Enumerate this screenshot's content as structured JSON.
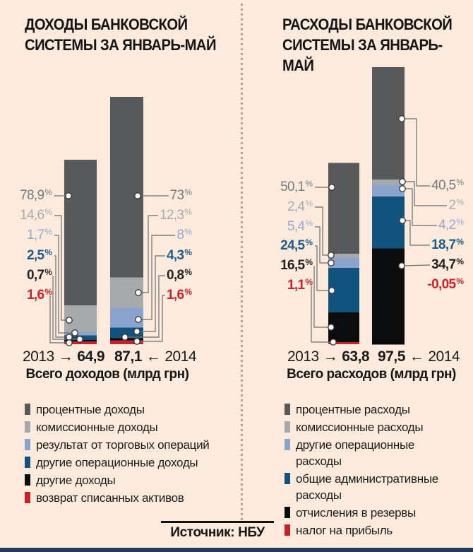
{
  "page": {
    "background_color": "#fcebdc",
    "divider_color": "#b3a79b",
    "bottom_bar_color": "#24395b",
    "leader_line_color": "#6d6e71"
  },
  "source": {
    "label": "Источник: НБУ"
  },
  "chart_data": [
    {
      "type": "bar",
      "stacked": true,
      "title": "ДОХОДЫ БАНКОВСКОЙ\nСИСТЕМЫ ЗА ЯНВАРЬ-МАЙ",
      "categories": [
        "2013",
        "2014"
      ],
      "totals": [
        64.9,
        87.1
      ],
      "arrows": [
        "→",
        "←"
      ],
      "totals_unit_label": "Всего доходов (млрд грн)",
      "value_format": "percent_of_total",
      "legend_position": "bottom-left",
      "series": [
        {
          "name": "процентные доходы",
          "color": "#58595b",
          "label_color": "#797a7d",
          "values": [
            78.9,
            73
          ]
        },
        {
          "name": "комиссионные доходы",
          "color": "#a7a9ac",
          "label_color": "#a9abae",
          "values": [
            14.6,
            12.3
          ]
        },
        {
          "name": "результат от торговых операций",
          "color": "#8ba4cd",
          "label_color": "#97a9d0",
          "values": [
            1.7,
            8
          ]
        },
        {
          "name": "другие операционные доходы",
          "color": "#11537e",
          "label_color": "#1c5b8c",
          "values": [
            2.5,
            4.3
          ]
        },
        {
          "name": "другие доходы",
          "color": "#0b0c0e",
          "label_color": "#232021",
          "values": [
            0.7,
            0.8
          ]
        },
        {
          "name": "возврат списанных активов",
          "color": "#c92128",
          "label_color": "#cd2127",
          "values": [
            1.6,
            1.6
          ]
        }
      ]
    },
    {
      "type": "bar",
      "stacked": true,
      "title": "РАСХОДЫ БАНКОВСКОЙ\nСИСТЕМЫ ЗА ЯНВАРЬ-МАЙ",
      "categories": [
        "2013",
        "2014"
      ],
      "totals": [
        63.8,
        97.5
      ],
      "arrows": [
        "→",
        "←"
      ],
      "totals_unit_label": "Всего расходов (млрд грн)",
      "value_format": "percent_of_total",
      "legend_position": "bottom-right",
      "series": [
        {
          "name": "процентные расходы",
          "color": "#58595b",
          "label_color": "#797a7d",
          "values": [
            50.1,
            40.5
          ]
        },
        {
          "name": "комиссионные расходы",
          "color": "#a7a9ac",
          "label_color": "#a9abae",
          "values": [
            2.4,
            2
          ]
        },
        {
          "name": "другие операционные расходы",
          "color": "#8ba4cd",
          "label_color": "#97a9d0",
          "values": [
            5.4,
            4.2
          ]
        },
        {
          "name": "общие административные расходы",
          "color": "#11537e",
          "label_color": "#1c5b8c",
          "values": [
            24.5,
            18.7
          ]
        },
        {
          "name": "отчисления в резервы",
          "color": "#0b0c0e",
          "label_color": "#232021",
          "values": [
            16.5,
            34.7
          ]
        },
        {
          "name": "налог на прибыль",
          "color": "#c92128",
          "label_color": "#cd2127",
          "values": [
            1.1,
            -0.05
          ]
        }
      ]
    }
  ]
}
